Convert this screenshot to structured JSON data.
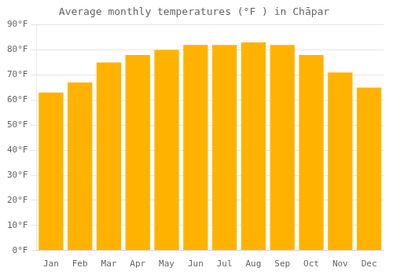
{
  "chart_data": {
    "type": "bar",
    "title": "Average monthly temperatures (°F ) in Chāpar",
    "categories": [
      "Jan",
      "Feb",
      "Mar",
      "Apr",
      "May",
      "Jun",
      "Jul",
      "Aug",
      "Sep",
      "Oct",
      "Nov",
      "Dec"
    ],
    "values": [
      63,
      67,
      75,
      78,
      80,
      82,
      82,
      83,
      82,
      78,
      71,
      65
    ],
    "color": "#FFB300",
    "ylim": [
      0,
      90
    ],
    "yticks": [
      {
        "value": 0,
        "label": "0°F"
      },
      {
        "value": 10,
        "label": "10°F"
      },
      {
        "value": 20,
        "label": "20°F"
      },
      {
        "value": 30,
        "label": "30°F"
      },
      {
        "value": 40,
        "label": "40°F"
      },
      {
        "value": 50,
        "label": "50°F"
      },
      {
        "value": 60,
        "label": "60°F"
      },
      {
        "value": 70,
        "label": "70°F"
      },
      {
        "value": 80,
        "label": "80°F"
      },
      {
        "value": 90,
        "label": "90°F"
      }
    ],
    "grid": true
  }
}
